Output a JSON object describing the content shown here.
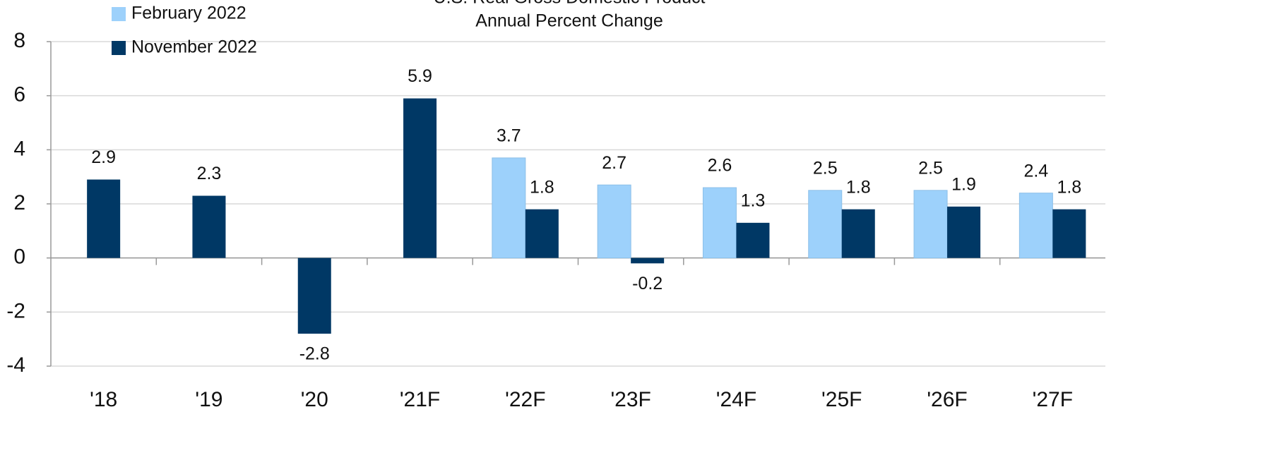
{
  "chart_data": {
    "type": "bar",
    "title": "U.S. Real Gross Domestic Product",
    "subtitle": "Annual Percent Change",
    "categories": [
      "'18",
      "'19",
      "'20",
      "'21F",
      "'22F",
      "'23F",
      "'24F",
      "'25F",
      "'26F",
      "'27F"
    ],
    "series": [
      {
        "name": "February 2022",
        "color": "#9dd1fb",
        "values": [
          null,
          null,
          null,
          null,
          3.7,
          2.7,
          2.6,
          2.5,
          2.5,
          2.4
        ]
      },
      {
        "name": "November 2022",
        "color": "#003865",
        "values": [
          2.9,
          2.3,
          -2.8,
          5.9,
          1.8,
          -0.2,
          1.3,
          1.8,
          1.9,
          1.8
        ]
      }
    ],
    "ylim": [
      -4,
      8
    ],
    "yticks": [
      -4,
      -2,
      0,
      2,
      4,
      6,
      8
    ],
    "grid": true,
    "legend": "top-left"
  }
}
